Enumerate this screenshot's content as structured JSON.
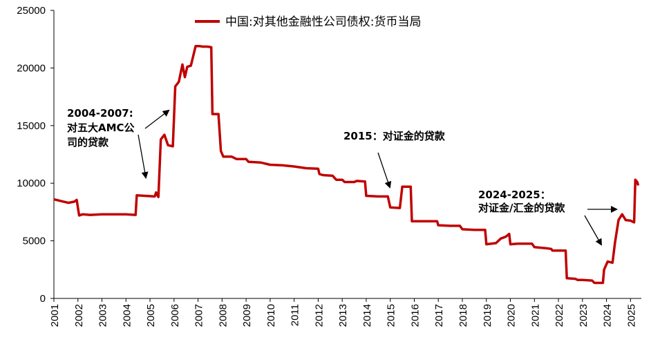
{
  "chart_data": {
    "type": "line",
    "title": "",
    "xlabel": "",
    "ylabel": "",
    "ylim": [
      0,
      25000
    ],
    "yticks": [
      0,
      5000,
      10000,
      15000,
      20000,
      25000
    ],
    "xlim": [
      2001.0,
      2025.45
    ],
    "xticks": [
      "2001",
      "2002",
      "2003",
      "2004",
      "2005",
      "2006",
      "2007",
      "2008",
      "2009",
      "2010",
      "2011",
      "2012",
      "2013",
      "2014",
      "2015",
      "2016",
      "2017",
      "2018",
      "2019",
      "2020",
      "2021",
      "2022",
      "2023",
      "2024",
      "2025"
    ],
    "grid": false,
    "legend_position": "top-center",
    "series": [
      {
        "name": "中国:对其他金融性公司债权:货币当局",
        "color": "#c00000",
        "points": [
          [
            2001.0,
            8600
          ],
          [
            2001.3,
            8450
          ],
          [
            2001.6,
            8300
          ],
          [
            2001.85,
            8400
          ],
          [
            2001.95,
            8550
          ],
          [
            2002.05,
            7200
          ],
          [
            2002.2,
            7300
          ],
          [
            2002.5,
            7250
          ],
          [
            2003.0,
            7300
          ],
          [
            2003.5,
            7300
          ],
          [
            2004.0,
            7300
          ],
          [
            2004.4,
            7250
          ],
          [
            2004.45,
            8950
          ],
          [
            2004.8,
            8900
          ],
          [
            2005.2,
            8850
          ],
          [
            2005.25,
            9200
          ],
          [
            2005.35,
            8800
          ],
          [
            2005.45,
            13800
          ],
          [
            2005.6,
            14200
          ],
          [
            2005.75,
            13300
          ],
          [
            2005.95,
            13200
          ],
          [
            2006.05,
            18400
          ],
          [
            2006.2,
            18800
          ],
          [
            2006.35,
            20300
          ],
          [
            2006.45,
            19200
          ],
          [
            2006.55,
            20100
          ],
          [
            2006.7,
            20200
          ],
          [
            2006.9,
            21900
          ],
          [
            2007.05,
            21900
          ],
          [
            2007.2,
            21850
          ],
          [
            2007.4,
            21850
          ],
          [
            2007.55,
            21800
          ],
          [
            2007.6,
            16000
          ],
          [
            2007.85,
            16000
          ],
          [
            2007.95,
            12800
          ],
          [
            2008.05,
            12300
          ],
          [
            2008.4,
            12300
          ],
          [
            2008.6,
            12100
          ],
          [
            2009.0,
            12100
          ],
          [
            2009.1,
            11850
          ],
          [
            2009.6,
            11800
          ],
          [
            2010.0,
            11600
          ],
          [
            2010.5,
            11550
          ],
          [
            2011.0,
            11450
          ],
          [
            2011.5,
            11300
          ],
          [
            2012.0,
            11250
          ],
          [
            2012.05,
            10800
          ],
          [
            2012.2,
            10700
          ],
          [
            2012.6,
            10650
          ],
          [
            2012.75,
            10300
          ],
          [
            2013.0,
            10300
          ],
          [
            2013.1,
            10100
          ],
          [
            2013.5,
            10100
          ],
          [
            2013.6,
            10200
          ],
          [
            2013.95,
            10150
          ],
          [
            2014.0,
            8900
          ],
          [
            2014.5,
            8850
          ],
          [
            2014.9,
            8850
          ],
          [
            2015.0,
            7900
          ],
          [
            2015.4,
            7850
          ],
          [
            2015.5,
            9700
          ],
          [
            2015.85,
            9700
          ],
          [
            2015.9,
            6700
          ],
          [
            2016.5,
            6700
          ],
          [
            2016.95,
            6700
          ],
          [
            2017.0,
            6350
          ],
          [
            2017.5,
            6300
          ],
          [
            2017.9,
            6300
          ],
          [
            2018.0,
            6000
          ],
          [
            2018.5,
            5950
          ],
          [
            2018.95,
            5950
          ],
          [
            2019.0,
            4700
          ],
          [
            2019.4,
            4800
          ],
          [
            2019.6,
            5200
          ],
          [
            2019.8,
            5350
          ],
          [
            2019.95,
            5600
          ],
          [
            2020.0,
            4700
          ],
          [
            2020.3,
            4750
          ],
          [
            2020.9,
            4750
          ],
          [
            2021.0,
            4450
          ],
          [
            2021.5,
            4350
          ],
          [
            2021.7,
            4300
          ],
          [
            2021.75,
            4150
          ],
          [
            2022.3,
            4150
          ],
          [
            2022.35,
            1750
          ],
          [
            2022.7,
            1700
          ],
          [
            2022.8,
            1600
          ],
          [
            2023.0,
            1600
          ],
          [
            2023.4,
            1550
          ],
          [
            2023.5,
            1350
          ],
          [
            2023.85,
            1350
          ],
          [
            2023.9,
            2500
          ],
          [
            2024.05,
            3200
          ],
          [
            2024.25,
            3100
          ],
          [
            2024.35,
            4800
          ],
          [
            2024.5,
            6800
          ],
          [
            2024.65,
            7300
          ],
          [
            2024.8,
            6800
          ],
          [
            2025.0,
            6750
          ],
          [
            2025.15,
            6600
          ],
          [
            2025.2,
            10300
          ],
          [
            2025.28,
            10100
          ],
          [
            2025.32,
            9800
          ]
        ]
      }
    ],
    "annotations": [
      {
        "lines": [
          "2004-2007:",
          "对五大AMC公",
          "司的贷款"
        ]
      },
      {
        "lines": [
          "2015：对证金的贷款"
        ]
      },
      {
        "lines": [
          "2024-2025：",
          "对证金/汇金的贷款"
        ]
      }
    ]
  }
}
